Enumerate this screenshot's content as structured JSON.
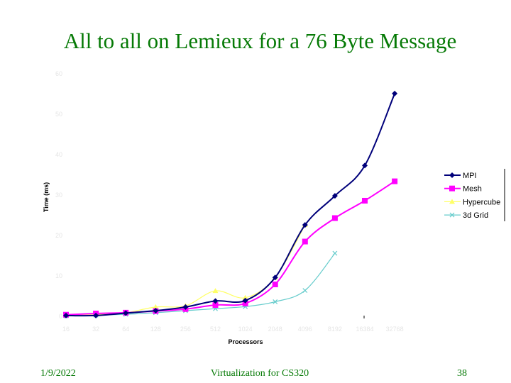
{
  "slide": {
    "title": "All to all on Lemieux for a 76 Byte Message",
    "footer_date": "1/9/2022",
    "footer_center": "Virtualization for CS320",
    "page_number": "38"
  },
  "colors": {
    "title": "#067a06",
    "axis_text": "#e5e5e5",
    "mpi": "#00007a",
    "mesh": "#ff00ff",
    "hypercube": "#ffff66",
    "grid3d": "#66cccc"
  },
  "chart_data": {
    "type": "line",
    "title": "",
    "xlabel": "Processors",
    "ylabel": "Time (ms)",
    "categories": [
      "16",
      "32",
      "64",
      "128",
      "256",
      "512",
      "1024",
      "2048",
      "4096",
      "8192",
      "16384",
      "32768"
    ],
    "y_ticks": [
      "0",
      "10",
      "20",
      "30",
      "40",
      "50",
      "60"
    ],
    "ylim": [
      0,
      60
    ],
    "grid": false,
    "legend_position": "right",
    "series": [
      {
        "name": "MPI",
        "color": "#00007a",
        "marker": "diamond",
        "values": [
          0.2,
          0.2,
          0.8,
          1.4,
          2.3,
          3.8,
          3.9,
          9.6,
          22.6,
          29.8,
          37.3,
          55.1
        ]
      },
      {
        "name": "Mesh",
        "color": "#ff00ff",
        "marker": "square",
        "values": [
          0.4,
          0.7,
          0.9,
          1.3,
          1.8,
          2.8,
          3.2,
          7.9,
          18.5,
          24.3,
          28.6,
          33.4
        ]
      },
      {
        "name": "Hypercube",
        "color": "#ffff66",
        "marker": "triangle",
        "values": [
          0.3,
          0.5,
          0.9,
          2.3,
          2.6,
          6.3,
          4.6,
          9.6,
          22.6,
          null,
          null,
          null
        ]
      },
      {
        "name": "3d Grid",
        "color": "#66cccc",
        "marker": "x",
        "values": [
          0.1,
          0.3,
          0.5,
          0.9,
          1.4,
          1.9,
          2.4,
          3.6,
          6.4,
          15.6,
          null,
          null
        ]
      }
    ]
  }
}
